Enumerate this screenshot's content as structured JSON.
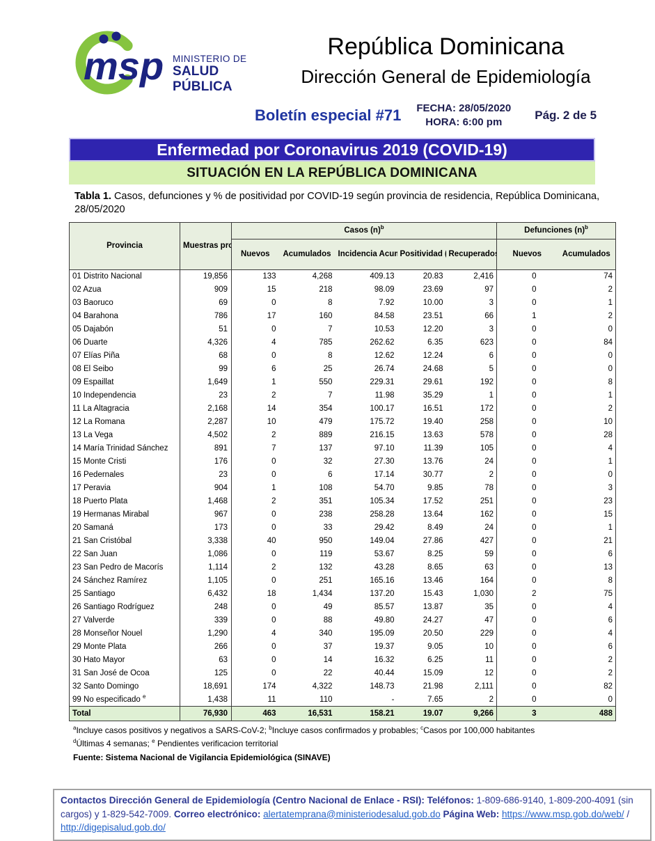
{
  "header": {
    "msp_text": "msp",
    "ministry_line1": "MINISTERIO DE",
    "ministry_line2": "SALUD PÚBLICA",
    "country": "República Dominicana",
    "department": "Dirección General de Epidemiología",
    "bulletin": "Boletín especial #71",
    "date_line": "FECHA: 28/05/2020",
    "time_line": "HORA: 6:00 pm",
    "page_indicator": "Pág. 2 de 5"
  },
  "banners": {
    "main_title": "Enfermedad por Coronavirus 2019 (COVID-19)",
    "subtitle": "SITUACIÓN EN LA REPÚBLICA DOMINICANA"
  },
  "caption": {
    "label": "Tabla 1.",
    "text": " Casos, defunciones y % de positividad por COVID-19 según provincia de residencia, República Dominicana, 28/05/2020"
  },
  "table": {
    "col_headers": {
      "provincia": "Provincia",
      "muestras": "Muestras procesadas^a",
      "casos_group": "Casos (n)^b",
      "defunciones_group": "Defunciones (n)^b",
      "nuevos": "Nuevos",
      "acumulados": "Acumulados",
      "incidencia": "Incidencia Acumulada^c",
      "positividad": "Positividad (%)^d",
      "recuperados": "Recuperados",
      "def_nuevos": "Nuevos",
      "def_acumulados": "Acumulados"
    },
    "rows": [
      [
        "01 Distrito Nacional",
        "19,856",
        "133",
        "4,268",
        "409.13",
        "20.83",
        "2,416",
        "0",
        "74"
      ],
      [
        "02 Azua",
        "909",
        "15",
        "218",
        "98.09",
        "23.69",
        "97",
        "0",
        "2"
      ],
      [
        "03 Baoruco",
        "69",
        "0",
        "8",
        "7.92",
        "10.00",
        "3",
        "0",
        "1"
      ],
      [
        "04 Barahona",
        "786",
        "17",
        "160",
        "84.58",
        "23.51",
        "66",
        "1",
        "2"
      ],
      [
        "05 Dajabón",
        "51",
        "0",
        "7",
        "10.53",
        "12.20",
        "3",
        "0",
        "0"
      ],
      [
        "06 Duarte",
        "4,326",
        "4",
        "785",
        "262.62",
        "6.35",
        "623",
        "0",
        "84"
      ],
      [
        "07 Elías Piña",
        "68",
        "0",
        "8",
        "12.62",
        "12.24",
        "6",
        "0",
        "0"
      ],
      [
        "08 El Seibo",
        "99",
        "6",
        "25",
        "26.74",
        "24.68",
        "5",
        "0",
        "0"
      ],
      [
        "09 Espaillat",
        "1,649",
        "1",
        "550",
        "229.31",
        "29.61",
        "192",
        "0",
        "8"
      ],
      [
        "10 Independencia",
        "23",
        "2",
        "7",
        "11.98",
        "35.29",
        "1",
        "0",
        "1"
      ],
      [
        "11 La Altagracia",
        "2,168",
        "14",
        "354",
        "100.17",
        "16.51",
        "172",
        "0",
        "2"
      ],
      [
        "12 La Romana",
        "2,287",
        "10",
        "479",
        "175.72",
        "19.40",
        "258",
        "0",
        "10"
      ],
      [
        "13 La Vega",
        "4,502",
        "2",
        "889",
        "216.15",
        "13.63",
        "578",
        "0",
        "28"
      ],
      [
        "14 María Trinidad Sánchez",
        "891",
        "7",
        "137",
        "97.10",
        "11.39",
        "105",
        "0",
        "4"
      ],
      [
        "15 Monte Cristi",
        "176",
        "0",
        "32",
        "27.30",
        "13.76",
        "24",
        "0",
        "1"
      ],
      [
        "16 Pedernales",
        "23",
        "0",
        "6",
        "17.14",
        "30.77",
        "2",
        "0",
        "0"
      ],
      [
        "17 Peravia",
        "904",
        "1",
        "108",
        "54.70",
        "9.85",
        "78",
        "0",
        "3"
      ],
      [
        "18 Puerto Plata",
        "1,468",
        "2",
        "351",
        "105.34",
        "17.52",
        "251",
        "0",
        "23"
      ],
      [
        "19 Hermanas Mirabal",
        "967",
        "0",
        "238",
        "258.28",
        "13.64",
        "162",
        "0",
        "15"
      ],
      [
        "20 Samaná",
        "173",
        "0",
        "33",
        "29.42",
        "8.49",
        "24",
        "0",
        "1"
      ],
      [
        "21 San Cristóbal",
        "3,338",
        "40",
        "950",
        "149.04",
        "27.86",
        "427",
        "0",
        "21"
      ],
      [
        "22 San Juan",
        "1,086",
        "0",
        "119",
        "53.67",
        "8.25",
        "59",
        "0",
        "6"
      ],
      [
        "23 San Pedro de Macorís",
        "1,114",
        "2",
        "132",
        "43.28",
        "8.65",
        "63",
        "0",
        "13"
      ],
      [
        "24 Sánchez Ramírez",
        "1,105",
        "0",
        "251",
        "165.16",
        "13.46",
        "164",
        "0",
        "8"
      ],
      [
        "25 Santiago",
        "6,432",
        "18",
        "1,434",
        "137.20",
        "15.43",
        "1,030",
        "2",
        "75"
      ],
      [
        "26 Santiago Rodríguez",
        "248",
        "0",
        "49",
        "85.57",
        "13.87",
        "35",
        "0",
        "4"
      ],
      [
        "27 Valverde",
        "339",
        "0",
        "88",
        "49.80",
        "24.27",
        "47",
        "0",
        "6"
      ],
      [
        "28 Monseñor Nouel",
        "1,290",
        "4",
        "340",
        "195.09",
        "20.50",
        "229",
        "0",
        "4"
      ],
      [
        "29 Monte Plata",
        "266",
        "0",
        "37",
        "19.37",
        "9.05",
        "10",
        "0",
        "6"
      ],
      [
        "30 Hato Mayor",
        "63",
        "0",
        "14",
        "16.32",
        "6.25",
        "11",
        "0",
        "2"
      ],
      [
        "31 San José de Ocoa",
        "125",
        "0",
        "22",
        "40.44",
        "15.09",
        "12",
        "0",
        "2"
      ],
      [
        "32 Santo Domingo",
        "18,691",
        "174",
        "4,322",
        "148.73",
        "21.98",
        "2,111",
        "0",
        "82"
      ],
      [
        "99 No especificado ^e",
        "1,438",
        "11",
        "110",
        "-",
        "7.65",
        "2",
        "0",
        "0"
      ]
    ],
    "total_row": [
      "Total",
      "76,930",
      "463",
      "16,531",
      "158.21",
      "19.07",
      "9,266",
      "3",
      "488"
    ]
  },
  "footnotes": {
    "line1": "^aIncluye casos positivos y negativos a SARS-CoV-2; ^bIncluye casos confirmados y probables; ^cCasos por 100,000 habitantes",
    "line2": "^dÚltimas 4 semanas; ^e Pendientes verificacion territorial",
    "source": "Fuente: Sistema Nacional de Vigilancia Epidemiológica (SINAVE)"
  },
  "footer": {
    "segments": [
      {
        "text": "Contactos Dirección General de Epidemiología (Centro Nacional de Enlace - RSI): ",
        "style": "bold"
      },
      {
        "text": "Teléfonos: ",
        "style": "bold"
      },
      {
        "text": "1-809-686-9140, 1-809-200-4091 (sin cargos) y 1-829-542-7009.  ",
        "style": "plain"
      },
      {
        "text": "Correo electrónico: ",
        "style": "bold"
      },
      {
        "text": "alertatemprana@ministeriodesalud.gob.do",
        "style": "link"
      },
      {
        "text": " ",
        "style": "plain"
      },
      {
        "text": "Página Web: ",
        "style": "bold"
      },
      {
        "text": "https://www.msp.gob.do/web/",
        "style": "link"
      },
      {
        "text": " / ",
        "style": "plain"
      },
      {
        "text": "http://digepisalud.gob.do/",
        "style": "link"
      }
    ]
  },
  "colors": {
    "banner_purple": "#2f24af",
    "banner_green": "#d8f1b4",
    "table_header_green": "#e8efe0",
    "total_row_green": "#dff0d4",
    "logo_green": "#86c440",
    "logo_navy": "#1b2380",
    "bulletin_navy": "#1f35a0",
    "link_blue": "#2563c9"
  }
}
